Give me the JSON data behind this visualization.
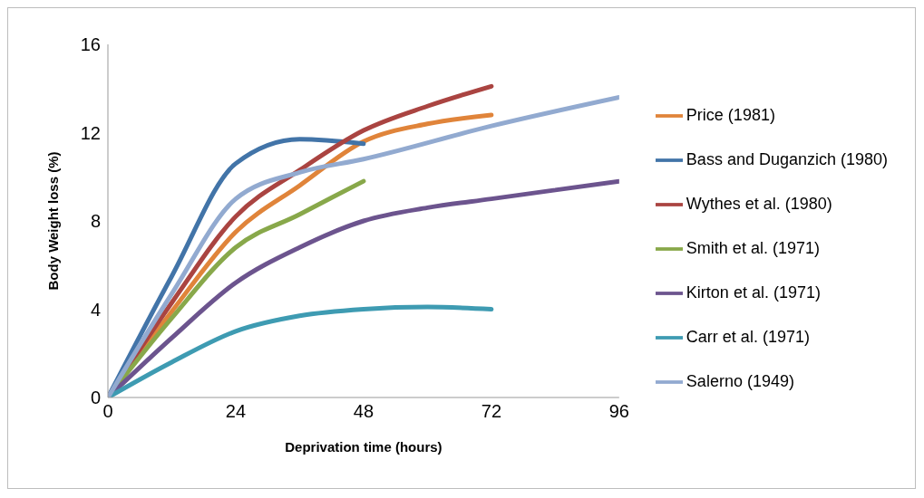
{
  "chart_data": {
    "type": "line",
    "xlabel": "Deprivation time (hours)",
    "ylabel": "Body Weight loss (%)",
    "xlim": [
      0,
      96
    ],
    "xticks": [
      0,
      24,
      48,
      72,
      96
    ],
    "ylim": [
      0,
      16
    ],
    "yticks": [
      0,
      4,
      8,
      12,
      16
    ],
    "grid": false,
    "legend": "right",
    "marker": "none",
    "line_style": "solid",
    "series": [
      {
        "name": "Price (1981)",
        "color": "#e0843a",
        "x": [
          0,
          12,
          24,
          36,
          48,
          60,
          72
        ],
        "values": [
          0,
          3.9,
          7.5,
          9.6,
          11.6,
          12.4,
          12.8
        ]
      },
      {
        "name": "Bass and Duganzich (1980)",
        "color": "#4274a8",
        "x": [
          0,
          12,
          24,
          36,
          48
        ],
        "values": [
          0,
          5.5,
          10.6,
          11.7,
          11.5
        ]
      },
      {
        "name": "Wythes et al. (1980)",
        "color": "#aa4441",
        "x": [
          0,
          12,
          24,
          36,
          48,
          60,
          72
        ],
        "values": [
          0,
          4.3,
          8.2,
          10.3,
          12.1,
          13.2,
          14.1
        ]
      },
      {
        "name": "Smith et al. (1971)",
        "color": "#88a84a",
        "x": [
          0,
          12,
          24,
          36,
          48
        ],
        "values": [
          0,
          3.6,
          6.8,
          8.3,
          9.8
        ]
      },
      {
        "name": "Kirton et al. (1971)",
        "color": "#6c548e",
        "x": [
          0,
          12,
          24,
          36,
          48,
          60,
          72,
          84,
          96
        ],
        "values": [
          0,
          2.7,
          5.2,
          6.8,
          8.0,
          8.6,
          9.0,
          9.4,
          9.8
        ]
      },
      {
        "name": "Carr et al. (1971)",
        "color": "#3e9bb2",
        "x": [
          0,
          12,
          24,
          36,
          48,
          60,
          72
        ],
        "values": [
          0,
          1.6,
          3.0,
          3.7,
          4.0,
          4.1,
          4.0
        ]
      },
      {
        "name": "Salerno (1949)",
        "color": "#92aad0",
        "x": [
          0,
          12,
          24,
          36,
          48,
          72,
          96
        ],
        "values": [
          0,
          4.7,
          9.0,
          10.2,
          10.8,
          12.3,
          13.6
        ]
      }
    ]
  }
}
